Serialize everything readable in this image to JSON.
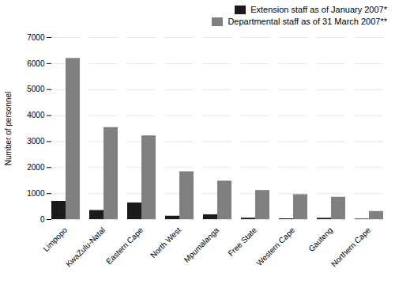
{
  "chart_data": {
    "type": "bar",
    "categories": [
      "Limpopo",
      "KwaZulu-Natal",
      "Eastern Cape",
      "North West",
      "Mpumalanga",
      "Free State",
      "Western Cape",
      "Gauteng",
      "Northern Cape"
    ],
    "series": [
      {
        "name": "Extension staff as of January 2007*",
        "color": "#1a1a1a",
        "values": [
          700,
          350,
          640,
          130,
          185,
          55,
          30,
          50,
          20
        ]
      },
      {
        "name": "Departmental staff as of 31 March 2007**",
        "color": "#808080",
        "values": [
          6200,
          3540,
          3220,
          1840,
          1480,
          1120,
          960,
          860,
          310
        ]
      }
    ],
    "ylabel": "Number of personnel",
    "ylim": [
      0,
      7000
    ],
    "yticks": [
      0,
      1000,
      2000,
      3000,
      4000,
      5000,
      6000,
      7000
    ],
    "grid": true,
    "legend": "upper right"
  }
}
